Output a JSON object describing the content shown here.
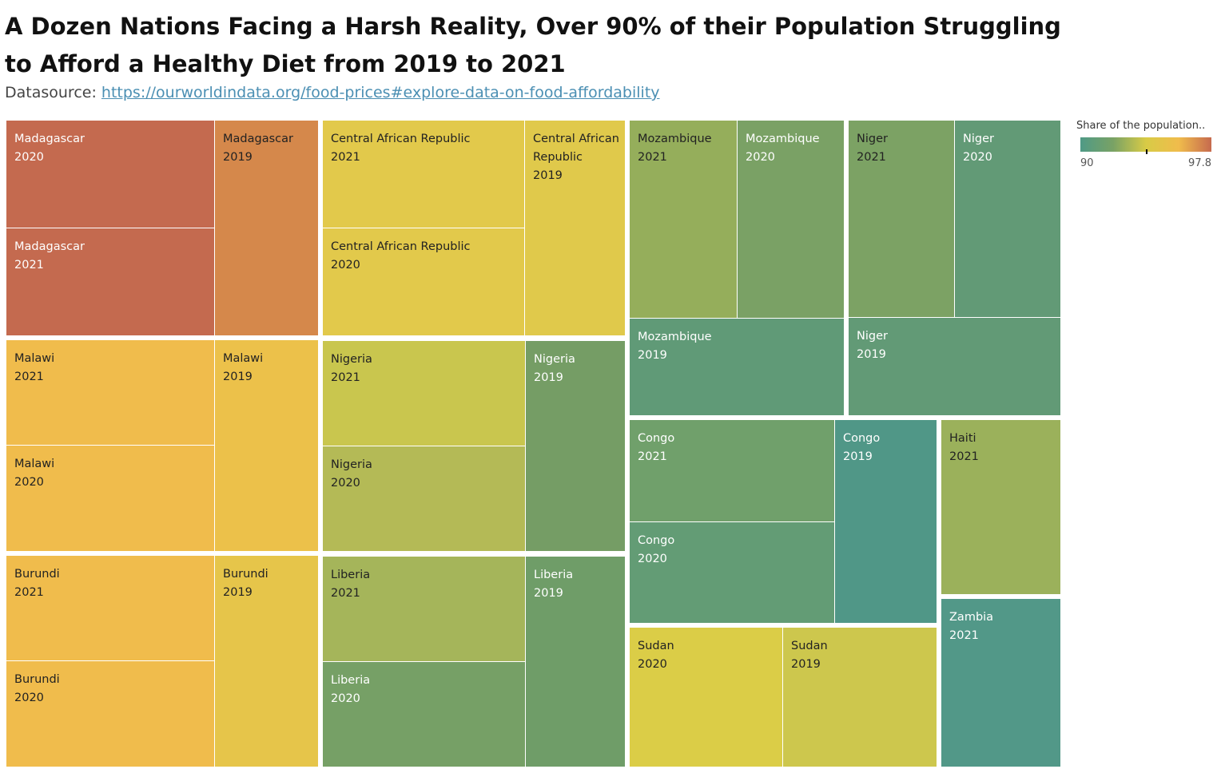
{
  "header": {
    "title": "A Dozen Nations Facing a Harsh Reality, Over 90% of their Population Struggling to Afford a Healthy Diet from 2019 to 2021",
    "datasource_label": "Datasource:",
    "datasource_link": "https://ourworldindata.org/food-prices#explore-data-on-food-affordability"
  },
  "legend": {
    "title": "Share of the population..",
    "min_label": "90",
    "max_label": "97.8",
    "colors": [
      "#4f9a86",
      "#79a265",
      "#d8cb46",
      "#f0bc4c",
      "#c66a4e"
    ]
  },
  "chart_data": {
    "type": "treemap",
    "title": "A Dozen Nations Facing a Harsh Reality, Over 90% of their Population Struggling to Afford a Healthy Diet from 2019 to 2021",
    "color_measure": "Share of the population..",
    "color_range": [
      90,
      97.8
    ],
    "groups": [
      {
        "country": "Madagascar",
        "years": [
          {
            "year": "2020",
            "value": 97.8,
            "color": "#c46a4f"
          },
          {
            "year": "2021",
            "value": 97.8,
            "color": "#c46a4f"
          },
          {
            "year": "2019",
            "value": 97.2,
            "color": "#d5884b"
          }
        ]
      },
      {
        "country": "Malawi",
        "years": [
          {
            "year": "2021",
            "value": 96.2,
            "color": "#f0bc4c"
          },
          {
            "year": "2020",
            "value": 96.2,
            "color": "#f0bc4c"
          },
          {
            "year": "2019",
            "value": 95.6,
            "color": "#ecc14a"
          }
        ]
      },
      {
        "country": "Burundi",
        "years": [
          {
            "year": "2021",
            "value": 96.2,
            "color": "#f0bc4c"
          },
          {
            "year": "2020",
            "value": 96.2,
            "color": "#f0bc4c"
          },
          {
            "year": "2019",
            "value": 95.3,
            "color": "#e6c54a"
          }
        ]
      },
      {
        "country": "Central African Republic",
        "years": [
          {
            "year": "2021",
            "value": 95.1,
            "color": "#e2c94b"
          },
          {
            "year": "2020",
            "value": 95.1,
            "color": "#e2c94b"
          },
          {
            "year": "2019",
            "value": 95.0,
            "color": "#e0c94b"
          }
        ]
      },
      {
        "country": "Nigeria",
        "years": [
          {
            "year": "2021",
            "value": 93.7,
            "color": "#c9c64e"
          },
          {
            "year": "2020",
            "value": 93.1,
            "color": "#b4ba56"
          },
          {
            "year": "2019",
            "value": 91.2,
            "color": "#759d65"
          }
        ]
      },
      {
        "country": "Liberia",
        "years": [
          {
            "year": "2021",
            "value": 92.5,
            "color": "#a5b55a"
          },
          {
            "year": "2020",
            "value": 91.2,
            "color": "#76a066"
          },
          {
            "year": "2019",
            "value": 91.0,
            "color": "#6f9d68"
          }
        ]
      },
      {
        "country": "Mozambique",
        "years": [
          {
            "year": "2021",
            "value": 92.3,
            "color": "#95ae5b"
          },
          {
            "year": "2020",
            "value": 91.2,
            "color": "#7aa165"
          },
          {
            "year": "2019",
            "value": 90.4,
            "color": "#609a77"
          }
        ]
      },
      {
        "country": "Niger",
        "years": [
          {
            "year": "2021",
            "value": 91.4,
            "color": "#7ca264"
          },
          {
            "year": "2020",
            "value": 90.4,
            "color": "#629a76"
          },
          {
            "year": "2019",
            "value": 90.4,
            "color": "#629a76"
          }
        ]
      },
      {
        "country": "Congo",
        "years": [
          {
            "year": "2021",
            "value": 91.0,
            "color": "#70a06b"
          },
          {
            "year": "2020",
            "value": 90.5,
            "color": "#639c75"
          },
          {
            "year": "2019",
            "value": 90.0,
            "color": "#509787"
          }
        ]
      },
      {
        "country": "Sudan",
        "years": [
          {
            "year": "2020",
            "value": 94.8,
            "color": "#dbcd47"
          },
          {
            "year": "2019",
            "value": 93.9,
            "color": "#cdc74d"
          }
        ]
      },
      {
        "country": "Haiti",
        "years": [
          {
            "year": "2021",
            "value": 92.6,
            "color": "#9bb15b"
          }
        ]
      },
      {
        "country": "Zambia",
        "years": [
          {
            "year": "2021",
            "value": 90.0,
            "color": "#529888"
          }
        ]
      }
    ]
  }
}
